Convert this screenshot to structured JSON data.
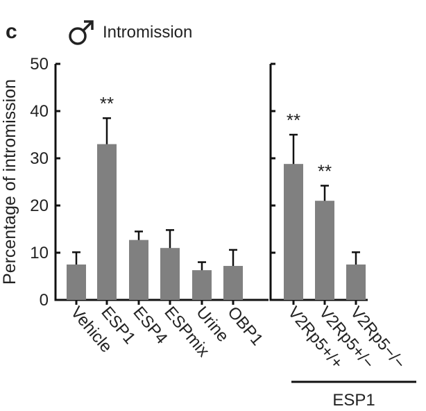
{
  "panel_letter": "c",
  "title": "Intromission",
  "title_icon": "male-symbol-icon",
  "colors": {
    "bar": "#808080",
    "axis": "#111111",
    "text": "#222222"
  },
  "chart_data": {
    "type": "bar",
    "ylabel": "Percentage of intromission",
    "ylim": [
      0,
      50
    ],
    "yticks": [
      0,
      10,
      20,
      30,
      40,
      50
    ],
    "panels": [
      {
        "categories": [
          "Vehicle",
          "ESP1",
          "ESP4",
          "ESPmix",
          "Urine",
          "OBP1"
        ],
        "values": [
          7.5,
          33,
          12.7,
          11,
          6.3,
          7.2
        ],
        "errors": [
          2.6,
          5.5,
          1.8,
          3.8,
          1.7,
          3.4
        ],
        "significance": [
          "",
          "**",
          "",
          "",
          "",
          ""
        ]
      },
      {
        "categories": [
          "V2Rp5+/+",
          "V2Rp5+/−",
          "V2Rp5−/−"
        ],
        "values": [
          28.8,
          21,
          7.5
        ],
        "errors": [
          6.2,
          3.2,
          2.6
        ],
        "significance": [
          "**",
          "**",
          ""
        ],
        "group_label": "ESP1"
      }
    ]
  }
}
